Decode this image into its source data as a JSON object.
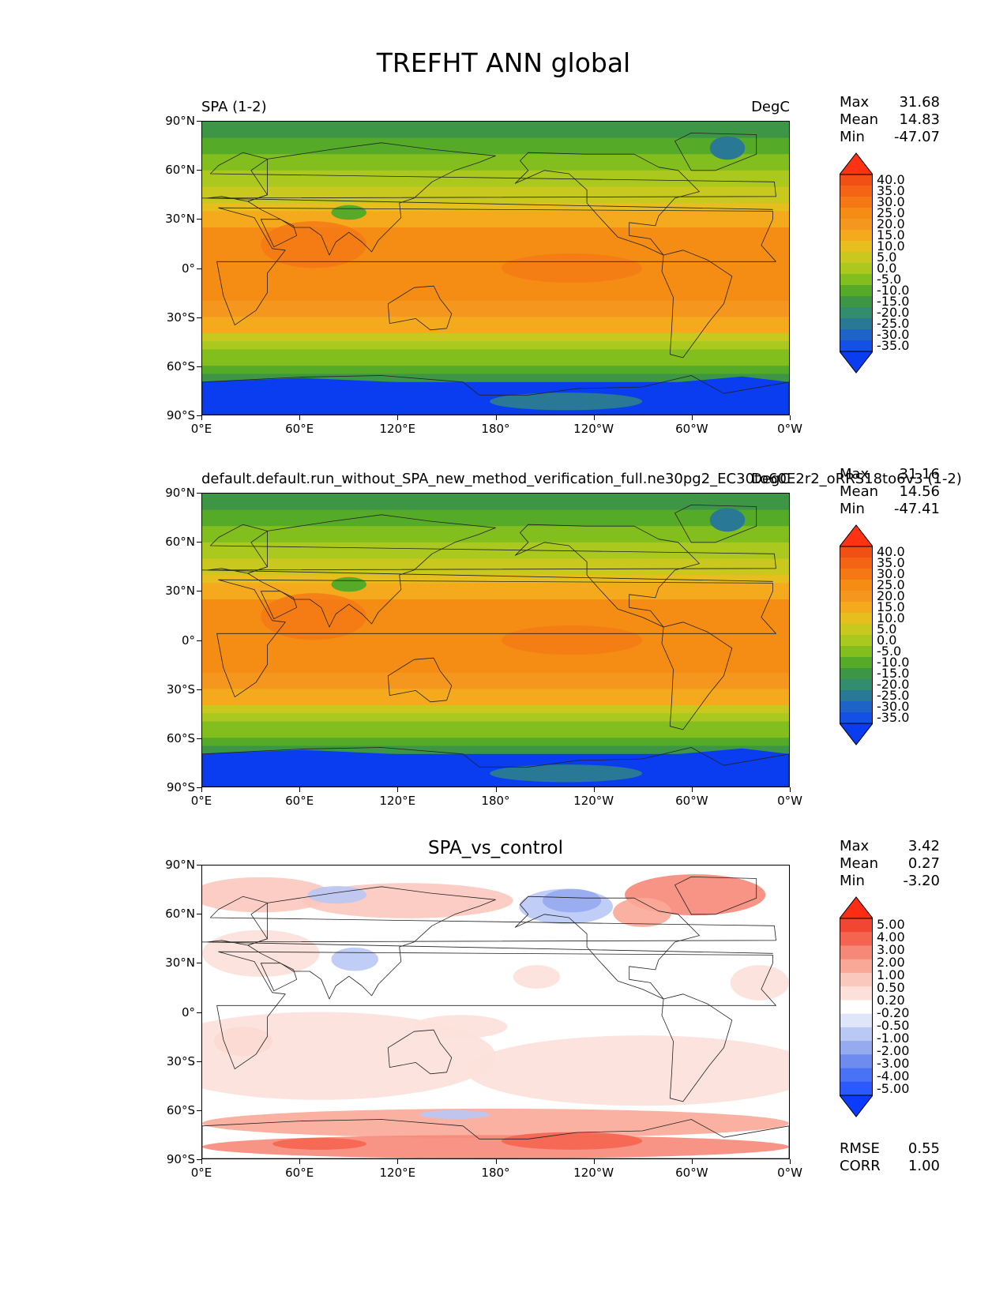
{
  "figure": {
    "title": "TREFHT ANN global"
  },
  "panels": [
    {
      "title_left": "SPA (1-2)",
      "title_right": "DegC",
      "title_center": "",
      "stats": [
        {
          "label": "Max",
          "value": "31.68"
        },
        {
          "label": "Mean",
          "value": "14.83"
        },
        {
          "label": "Min",
          "value": "-47.07"
        }
      ],
      "colorbar": [
        "40.0",
        "35.0",
        "30.0",
        "25.0",
        "20.0",
        "15.0",
        "10.0",
        "5.0",
        "0.0",
        "-5.0",
        "-10.0",
        "-15.0",
        "-20.0",
        "-25.0",
        "-30.0",
        "-35.0"
      ],
      "extra_stats": []
    },
    {
      "title_left": "default.default.run_without_SPA_new_method_verification_full.ne30pg2_EC30to60E2r2_oRRS18to6v3 (1-2)",
      "title_right": "DegC",
      "title_center": "",
      "stats": [
        {
          "label": "Max",
          "value": "31.16"
        },
        {
          "label": "Mean",
          "value": "14.56"
        },
        {
          "label": "Min",
          "value": "-47.41"
        }
      ],
      "colorbar": [
        "40.0",
        "35.0",
        "30.0",
        "25.0",
        "20.0",
        "15.0",
        "10.0",
        "5.0",
        "0.0",
        "-5.0",
        "-10.0",
        "-15.0",
        "-20.0",
        "-25.0",
        "-30.0",
        "-35.0"
      ],
      "extra_stats": []
    },
    {
      "title_left": "",
      "title_right": "",
      "title_center": "SPA_vs_control",
      "stats": [
        {
          "label": "Max",
          "value": "3.42"
        },
        {
          "label": "Mean",
          "value": "0.27"
        },
        {
          "label": "Min",
          "value": "-3.20"
        }
      ],
      "colorbar": [
        "5.00",
        "4.00",
        "3.00",
        "2.00",
        "1.00",
        "0.50",
        "0.20",
        "-0.20",
        "-0.50",
        "-1.00",
        "-2.00",
        "-3.00",
        "-4.00",
        "-5.00"
      ],
      "extra_stats": [
        {
          "label": "RMSE",
          "value": "0.55"
        },
        {
          "label": "CORR",
          "value": "1.00"
        }
      ]
    }
  ],
  "axes": {
    "lat_ticks": [
      "90°N",
      "60°N",
      "30°N",
      "0°",
      "30°S",
      "60°S",
      "90°S"
    ],
    "lon_ticks": [
      "0°E",
      "60°E",
      "120°E",
      "180°",
      "120°W",
      "60°W",
      "0°W"
    ]
  },
  "colors": {
    "temp_scale": [
      "#0a3cf0",
      "#1450e6",
      "#1e64c8",
      "#287896",
      "#328c6e",
      "#3c9646",
      "#55aa28",
      "#82be1e",
      "#aac81e",
      "#c8c81e",
      "#e6be1e",
      "#f5aa1e",
      "#f5961e",
      "#f58c14",
      "#f57814",
      "#f56414",
      "#f05014",
      "#ff3214"
    ],
    "diff_scale": [
      "#0a3cff",
      "#2a5aff",
      "#4a72f5",
      "#6e8cf0",
      "#96aaf0",
      "#b9c8f5",
      "#dfe6fa",
      "#ffffff",
      "#fde0da",
      "#fbc8be",
      "#f9a898",
      "#f68878",
      "#f46450",
      "#f04632",
      "#ff2c14"
    ]
  }
}
